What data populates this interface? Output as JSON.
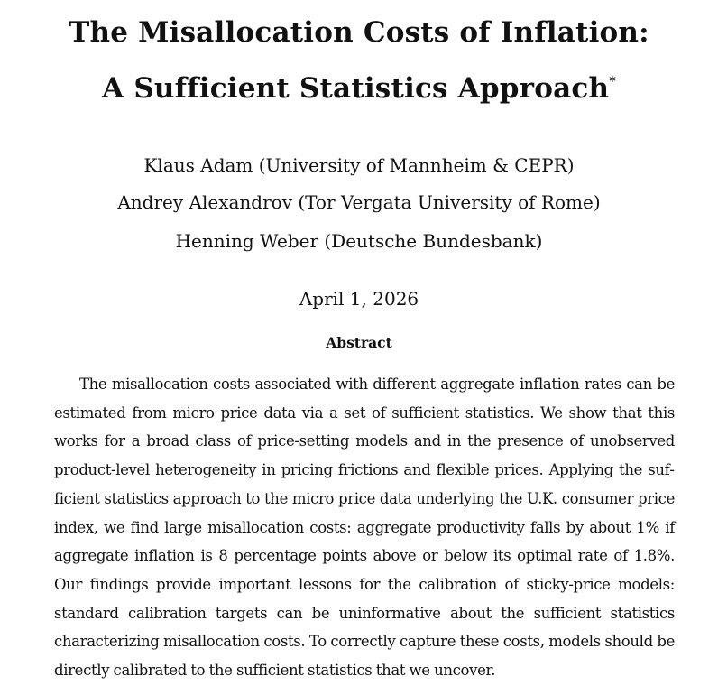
{
  "paper": {
    "title_line1": "The Misallocation Costs of Inflation:",
    "title_line2": "A Sufficient Statistics Approach",
    "title_footnote_mark": "*",
    "authors": [
      "Klaus Adam (University of Mannheim & CEPR)",
      "Andrey Alexandrov (Tor Vergata University of Rome)",
      "Henning Weber (Deutsche Bundesbank)"
    ],
    "date": "April 1, 2026",
    "abstract_heading": "Abstract",
    "abstract_text": "The misallocation costs associated with different aggregate inflation rates can be estimated from micro price data via a set of sufficient statistics. We show that this works for a broad class of price-setting models and in the presence of unobserved product-level heterogeneity in pricing frictions and flexible prices. Applying the suf­ficient statistics approach to the micro price data underlying the U.K. consumer price index, we find large misallocation costs: aggregate productivity falls by about 1% if aggregate inflation is 8 percentage points above or below its optimal rate of 1.8%. Our findings provide important lessons for the calibration of sticky-price mod­els: standard calibration targets can be uninformative about the sufficient statistics characterizing misallocation costs. To correctly capture these costs, models should be directly calibrated to the sufficient statistics that we uncover."
  }
}
